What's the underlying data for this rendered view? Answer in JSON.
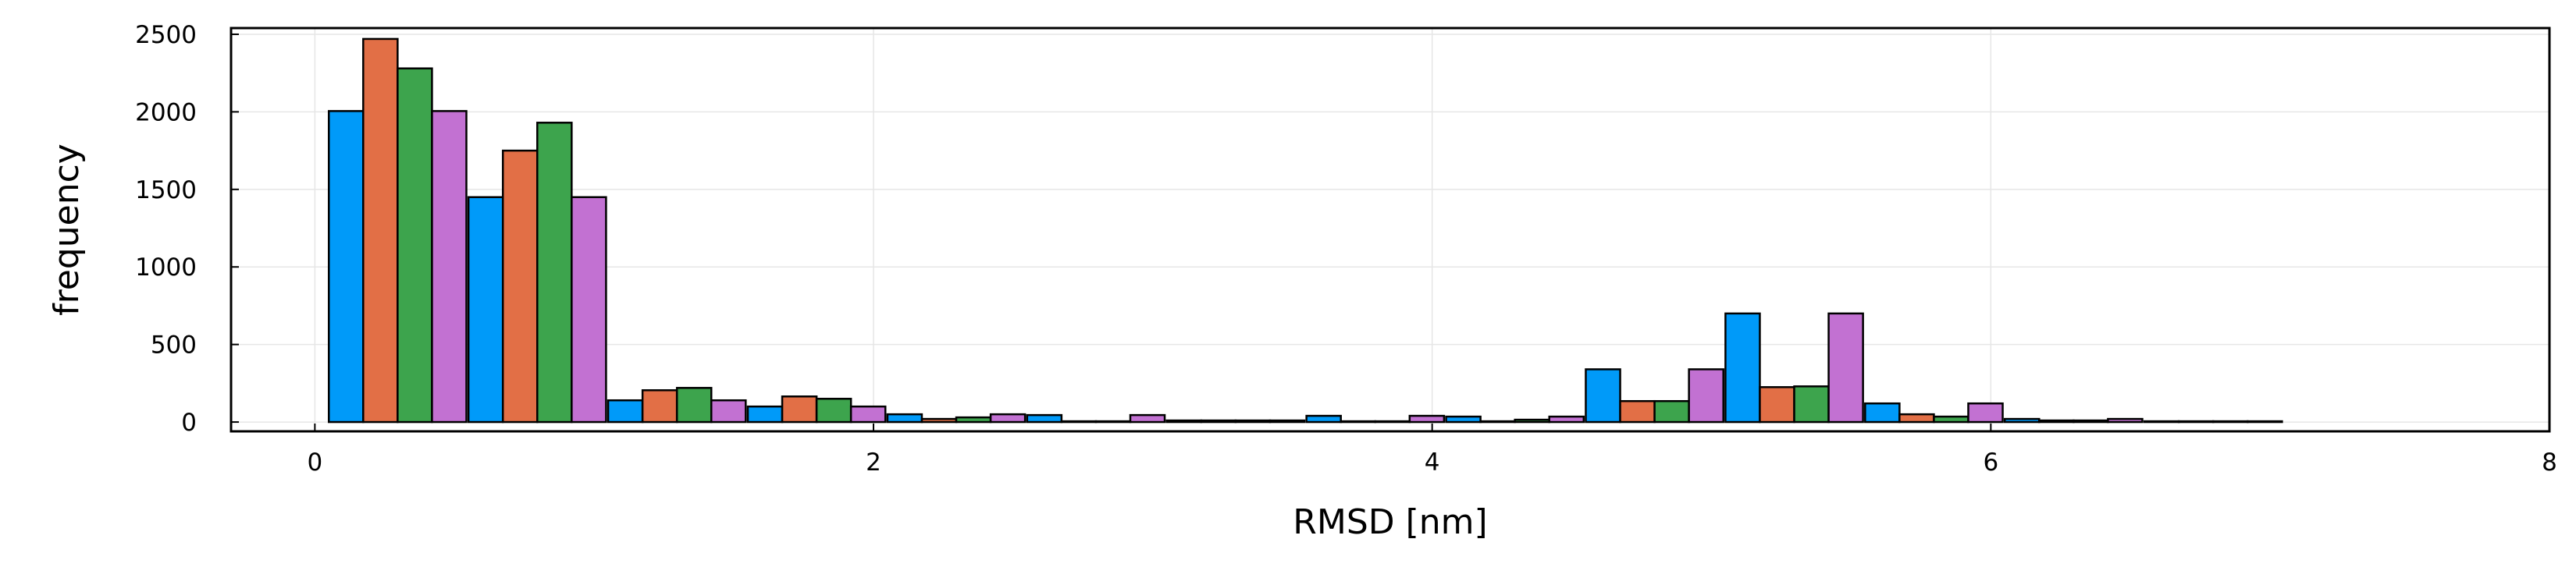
{
  "chart_data": {
    "type": "bar",
    "title": "",
    "xlabel": "RMSD [nm]",
    "ylabel": "frequency",
    "xlim": [
      -0.3,
      8
    ],
    "ylim": [
      -60,
      2540
    ],
    "xticks": [
      0,
      2,
      4,
      6,
      8
    ],
    "yticks": [
      0,
      500,
      1000,
      1500,
      2000,
      2500
    ],
    "grid": true,
    "legend": "none",
    "bin_width": 0.5,
    "bin_starts": [
      0.05,
      0.55,
      1.05,
      1.55,
      2.05,
      2.55,
      3.05,
      3.55,
      4.05,
      4.55,
      5.05,
      5.55,
      6.05,
      6.55
    ],
    "series": [
      {
        "color": "#009af9",
        "values": [
          2005,
          1450,
          140,
          100,
          50,
          45,
          10,
          40,
          35,
          340,
          700,
          120,
          20,
          5
        ]
      },
      {
        "color": "#e26f46",
        "values": [
          2470,
          1750,
          205,
          165,
          20,
          5,
          10,
          5,
          5,
          135,
          225,
          50,
          10,
          5
        ]
      },
      {
        "color": "#3da44d",
        "values": [
          2280,
          1930,
          220,
          150,
          30,
          5,
          10,
          5,
          15,
          135,
          230,
          35,
          10,
          5
        ]
      },
      {
        "color": "#c271d2",
        "values": [
          2005,
          1450,
          140,
          100,
          50,
          45,
          10,
          40,
          35,
          340,
          700,
          120,
          20,
          5
        ]
      }
    ]
  }
}
